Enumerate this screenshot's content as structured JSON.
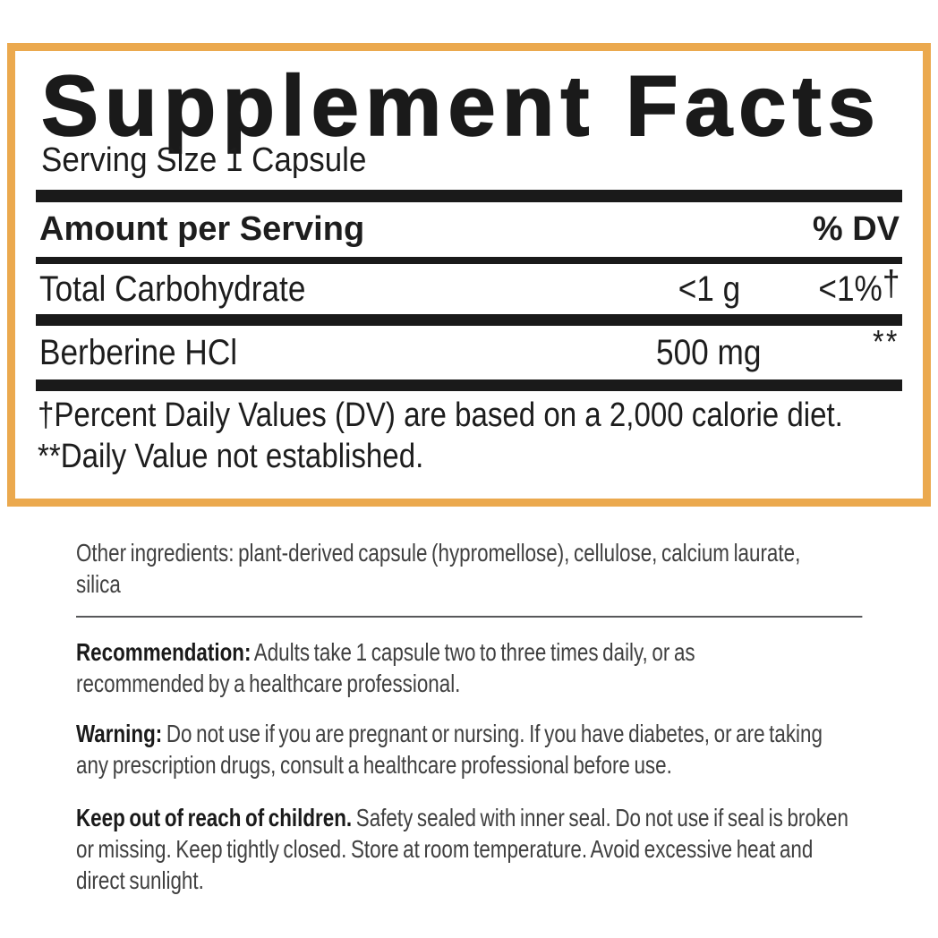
{
  "label_panel": {
    "border_color": "#eba94e",
    "title": "Supplement Facts",
    "serving_size": "Serving Size 1 Capsule",
    "header": {
      "amount": "Amount per Serving",
      "dv": "% DV"
    },
    "rows": [
      {
        "name": "Total Carbohydrate",
        "amount": "<1 g",
        "dv": "<1%",
        "dv_sup": "†"
      },
      {
        "name": "Berberine HCl",
        "amount": "500 mg",
        "dv": "",
        "dv_sup": "**"
      }
    ],
    "footnotes": [
      "†Percent Daily Values (DV) are based on a 2,000 calorie diet.",
      "**Daily Value not established."
    ]
  },
  "details": {
    "other_ingredients": "Other ingredients: plant-derived capsule (hypromellose), cellulose, calcium laurate, silica",
    "recommendation": {
      "label": "Recommendation:",
      "text": "Adults take 1 capsule two to three times daily, or as recommended by a healthcare professional."
    },
    "warning": {
      "label": "Warning:",
      "text": "Do not use if you are pregnant or nursing. If you have diabetes, or are taking any prescription drugs, consult a healthcare professional before use."
    },
    "children": {
      "label": "Keep out of reach of children.",
      "text": "Safety sealed with inner seal. Do not use if seal is broken or missing. Keep tightly closed. Store at room temperature. Avoid excessive heat and direct sunlight."
    }
  }
}
